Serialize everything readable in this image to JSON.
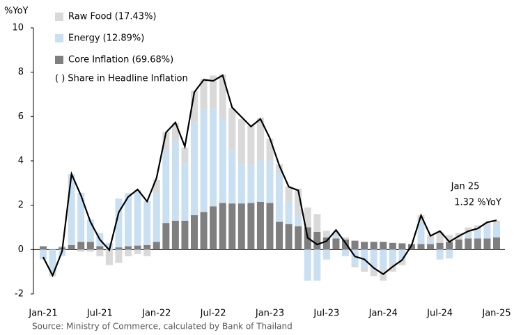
{
  "chart_data": {
    "type": "bar",
    "y_label": "%YoY",
    "categories": [
      "Jan-21",
      null,
      null,
      null,
      null,
      null,
      "Jul-21",
      null,
      null,
      null,
      null,
      null,
      "Jan-22",
      null,
      null,
      null,
      null,
      null,
      "Jul-22",
      null,
      null,
      null,
      null,
      null,
      "Jan-23",
      null,
      null,
      null,
      null,
      null,
      "Jul-23",
      null,
      null,
      null,
      null,
      null,
      "Jan-24",
      null,
      null,
      null,
      null,
      null,
      "Jul-24",
      null,
      null,
      null,
      null,
      null,
      "Jan-25"
    ],
    "series": [
      {
        "name": "Core Inflation (69.68%)",
        "color": "#7f7f7f",
        "values": [
          0.15,
          0.0,
          0.1,
          0.2,
          0.35,
          0.35,
          0.15,
          0.0,
          0.1,
          0.15,
          0.18,
          0.2,
          0.35,
          1.2,
          1.3,
          1.3,
          1.55,
          1.7,
          1.95,
          2.1,
          2.08,
          2.08,
          2.1,
          2.15,
          2.1,
          1.25,
          1.15,
          1.05,
          1.0,
          0.8,
          0.55,
          0.5,
          0.45,
          0.4,
          0.35,
          0.35,
          0.35,
          0.3,
          0.28,
          0.25,
          0.25,
          0.25,
          0.3,
          0.35,
          0.45,
          0.5,
          0.5,
          0.5,
          0.55
        ]
      },
      {
        "name": "Energy (12.89%)",
        "color": "#c9dff2",
        "values": [
          -0.45,
          -1.0,
          -0.3,
          3.2,
          2.2,
          1.0,
          0.6,
          0.3,
          2.2,
          2.4,
          2.5,
          2.0,
          2.2,
          3.3,
          3.6,
          2.6,
          4.2,
          4.6,
          4.4,
          3.8,
          2.4,
          1.8,
          1.7,
          1.9,
          1.9,
          2.2,
          1.0,
          0.5,
          -1.4,
          -1.4,
          -0.45,
          0.1,
          -0.3,
          -0.7,
          -0.8,
          -0.9,
          -0.9,
          -0.6,
          -0.5,
          0.0,
          1.0,
          0.2,
          -0.45,
          -0.4,
          0.0,
          0.2,
          0.4,
          0.6,
          0.6
        ]
      },
      {
        "name": "Raw Food (17.43%)",
        "color": "#d9d9d9",
        "values": [
          0.0,
          -0.2,
          0.05,
          0.0,
          -0.1,
          -0.1,
          -0.3,
          -0.7,
          -0.6,
          -0.3,
          -0.2,
          -0.3,
          0.6,
          0.8,
          0.8,
          0.7,
          1.4,
          1.4,
          1.5,
          2.0,
          1.9,
          2.0,
          1.8,
          1.9,
          1.0,
          0.4,
          0.7,
          1.2,
          0.9,
          0.8,
          0.3,
          0.2,
          0.1,
          -0.1,
          -0.2,
          -0.3,
          -0.5,
          -0.4,
          -0.2,
          0.0,
          0.3,
          0.2,
          0.5,
          0.3,
          0.3,
          0.3,
          0.2,
          0.1,
          0.15
        ]
      },
      {
        "name": "Headline",
        "color": "#000000",
        "line": true,
        "values": [
          -0.34,
          -1.17,
          -0.08,
          3.41,
          2.44,
          1.25,
          0.45,
          -0.02,
          1.68,
          2.38,
          2.71,
          2.17,
          3.23,
          5.28,
          5.73,
          4.65,
          7.1,
          7.66,
          7.61,
          7.86,
          6.41,
          5.98,
          5.55,
          5.89,
          5.02,
          3.79,
          2.83,
          2.67,
          0.53,
          0.23,
          0.38,
          0.88,
          0.3,
          -0.31,
          -0.44,
          -0.83,
          -1.11,
          -0.77,
          -0.47,
          0.19,
          1.54,
          0.62,
          0.83,
          0.35,
          0.61,
          0.83,
          0.95,
          1.23,
          1.32
        ]
      }
    ],
    "legend_note": "( ) Share in Headline Inflation",
    "annotation": [
      "Jan 25",
      "1.32 %YoY"
    ],
    "source": "Source: Ministry of Commerce, calculated by Bank of Thailand",
    "ylim": [
      -2,
      10
    ],
    "yticks": [
      -2,
      0,
      2,
      4,
      6,
      8,
      10
    ]
  }
}
